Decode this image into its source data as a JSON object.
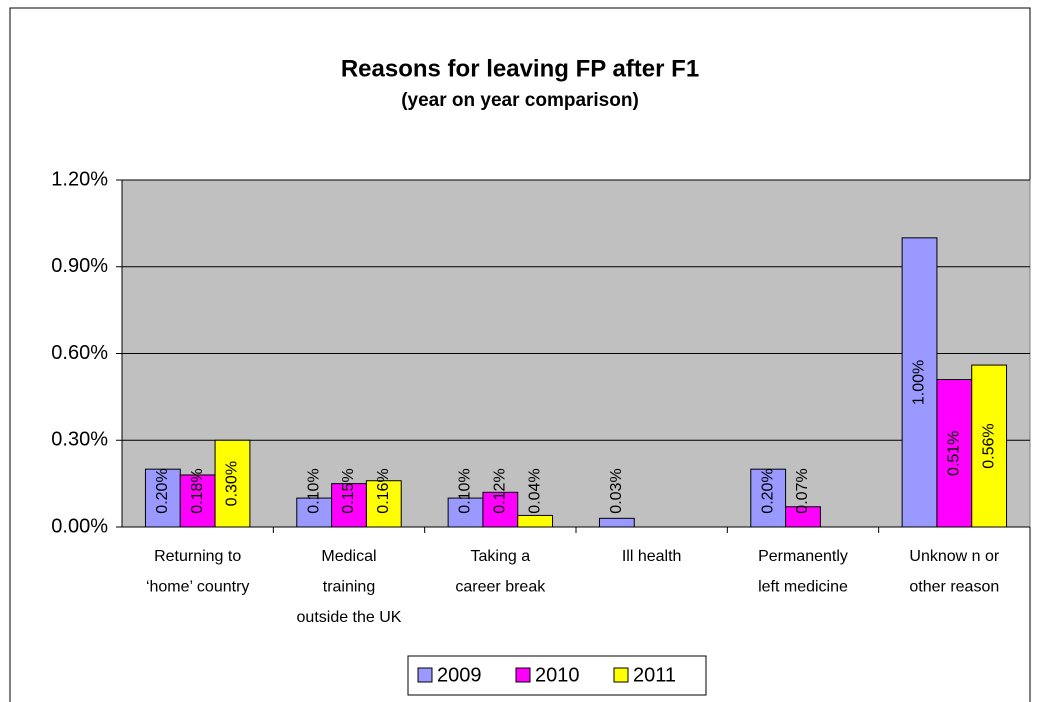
{
  "chart_data": {
    "type": "bar",
    "title": "Reasons for leaving FP after F1",
    "subtitle": "(year on year comparison)",
    "categories": [
      [
        "Returning to",
        "‘home’ country"
      ],
      [
        "Medical",
        "training",
        "outside the UK"
      ],
      [
        "Taking a",
        "career break"
      ],
      [
        "Ill health"
      ],
      [
        "Permanently",
        "left medicine"
      ],
      [
        "Unknow n or",
        "other reason"
      ]
    ],
    "series": [
      {
        "name": "2009",
        "color": "#9999ff",
        "values": [
          0.2,
          0.1,
          0.1,
          0.03,
          0.2,
          1.0
        ],
        "value_labels": [
          "0.20%",
          "0.10%",
          "0.10%",
          "0.03%",
          "0.20%",
          "1.00%"
        ]
      },
      {
        "name": "2010",
        "color": "#ff00ff",
        "values": [
          0.18,
          0.15,
          0.12,
          null,
          0.07,
          0.51
        ],
        "value_labels": [
          "0.18%",
          "0.15%",
          "0.12%",
          null,
          "0.07%",
          "0.51%"
        ]
      },
      {
        "name": "2011",
        "color": "#ffff00",
        "values": [
          0.3,
          0.16,
          0.04,
          null,
          null,
          0.56
        ],
        "value_labels": [
          "0.30%",
          "0.16%",
          "0.04%",
          null,
          null,
          "0.56%"
        ]
      }
    ],
    "ylim": [
      0,
      1.2
    ],
    "yticks": [
      {
        "value": 0,
        "label": "0.00%"
      },
      {
        "value": 0.3,
        "label": "0.30%"
      },
      {
        "value": 0.6,
        "label": "0.60%"
      },
      {
        "value": 0.9,
        "label": "0.90%"
      },
      {
        "value": 1.2,
        "label": "1.20%"
      }
    ],
    "grid": true,
    "legend": "bottom"
  }
}
